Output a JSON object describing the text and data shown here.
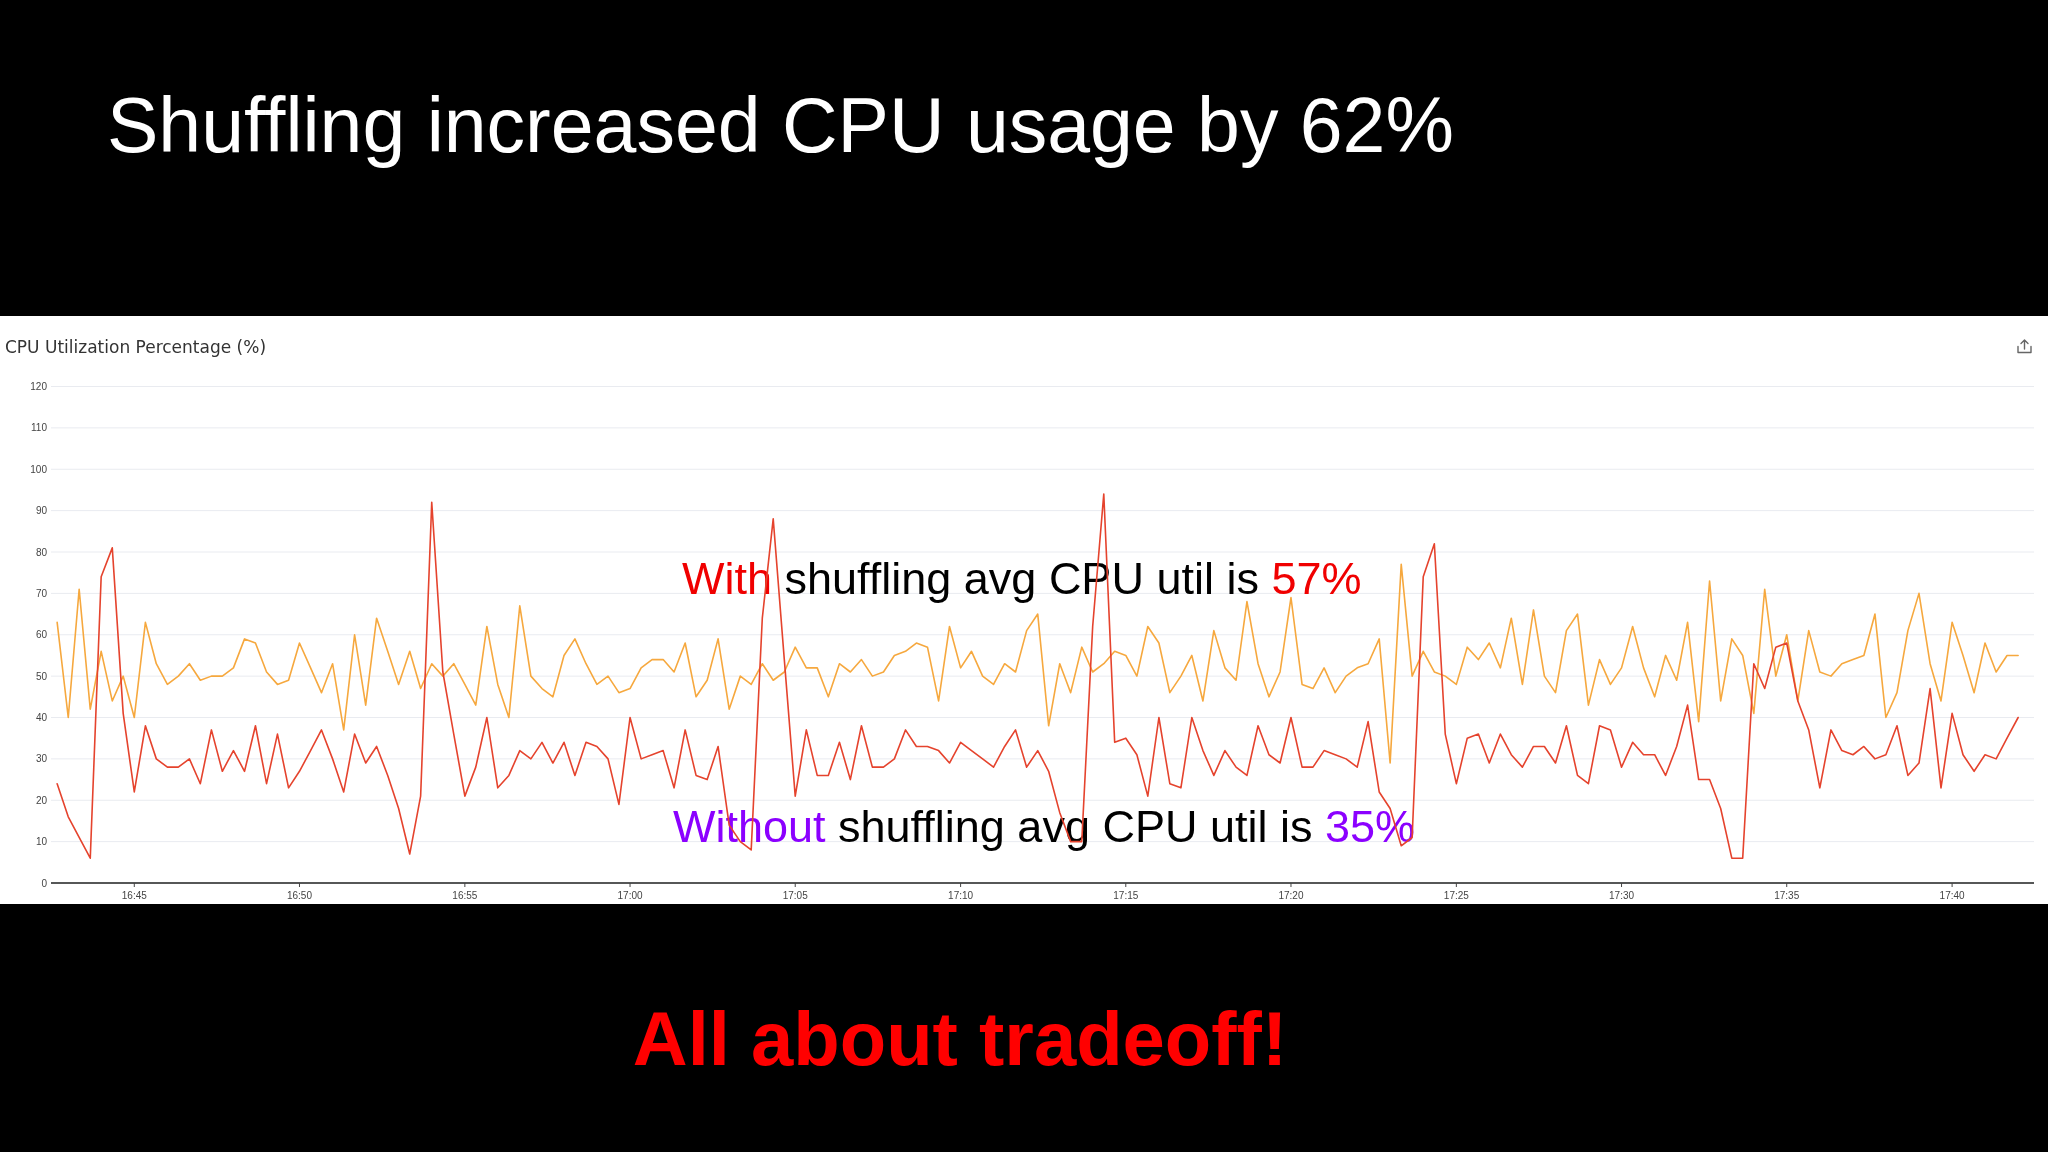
{
  "chart_data": {
    "type": "line",
    "title": "Shuffling increased CPU usage by 62%",
    "subtitle": "CPU Utilization Percentage (%)",
    "annotations": [
      "With shuffling avg CPU util is 57%",
      "Without shuffling avg CPU util is 35%",
      "All about tradeoff!"
    ],
    "xlim": [
      16.708,
      17.708
    ],
    "xticks": [
      {
        "value": 16.75,
        "label": "16:45"
      },
      {
        "value": 16.8333,
        "label": "16:50"
      },
      {
        "value": 16.9167,
        "label": "16:55"
      },
      {
        "value": 17,
        "label": "17:00"
      },
      {
        "value": 17.0833,
        "label": "17:05"
      },
      {
        "value": 17.1667,
        "label": "17:10"
      },
      {
        "value": 17.25,
        "label": "17:15"
      },
      {
        "value": 17.3333,
        "label": "17:20"
      },
      {
        "value": 17.4167,
        "label": "17:25"
      },
      {
        "value": 17.5,
        "label": "17:30"
      },
      {
        "value": 17.5833,
        "label": "17:35"
      },
      {
        "value": 17.6667,
        "label": "17:40"
      }
    ],
    "ylim": [
      0,
      120
    ],
    "yticks": [
      0,
      10,
      20,
      30,
      40,
      50,
      60,
      70,
      80,
      90,
      100,
      110,
      120
    ],
    "grid": "y",
    "x": [
      16.7111,
      16.7167,
      16.7222,
      16.7278,
      16.7333,
      16.7389,
      16.7444,
      16.75,
      16.7556,
      16.7611,
      16.7667,
      16.7722,
      16.7778,
      16.7833,
      16.7889,
      16.7944,
      16.8,
      16.8056,
      16.8111,
      16.8167,
      16.8222,
      16.8278,
      16.8333,
      16.8389,
      16.8444,
      16.85,
      16.8556,
      16.8611,
      16.8667,
      16.8722,
      16.8778,
      16.8833,
      16.8889,
      16.8944,
      16.9,
      16.9056,
      16.9111,
      16.9167,
      16.9222,
      16.9278,
      16.9333,
      16.9389,
      16.9444,
      16.95,
      16.9556,
      16.9611,
      16.9667,
      16.9722,
      16.9778,
      16.9833,
      16.9889,
      16.9944,
      17,
      17.0056,
      17.0111,
      17.0167,
      17.0222,
      17.0278,
      17.0333,
      17.0389,
      17.0444,
      17.05,
      17.0556,
      17.0611,
      17.0667,
      17.0722,
      17.0778,
      17.0833,
      17.0889,
      17.0944,
      17.1,
      17.1056,
      17.1111,
      17.1167,
      17.1222,
      17.1278,
      17.1333,
      17.1389,
      17.1444,
      17.15,
      17.1556,
      17.1611,
      17.1667,
      17.1722,
      17.1778,
      17.1833,
      17.1889,
      17.1944,
      17.2,
      17.2056,
      17.2111,
      17.2167,
      17.2222,
      17.2278,
      17.2333,
      17.2389,
      17.2444,
      17.25,
      17.2556,
      17.2611,
      17.2667,
      17.2722,
      17.2778,
      17.2833,
      17.2889,
      17.2944,
      17.3,
      17.3056,
      17.3111,
      17.3167,
      17.3222,
      17.3278,
      17.3333,
      17.3389,
      17.3444,
      17.35,
      17.3556,
      17.3611,
      17.3667,
      17.3722,
      17.3778,
      17.3833,
      17.3889,
      17.3944,
      17.4,
      17.4056,
      17.4111,
      17.4167,
      17.4222,
      17.4278,
      17.4333,
      17.4389,
      17.4444,
      17.45,
      17.4556,
      17.4611,
      17.4667,
      17.4722,
      17.4778,
      17.4833,
      17.4889,
      17.4944,
      17.5,
      17.5056,
      17.5111,
      17.5167,
      17.5222,
      17.5278,
      17.5333,
      17.5389,
      17.5444,
      17.55,
      17.5556,
      17.5611,
      17.5667,
      17.5722,
      17.5778,
      17.5833,
      17.5889,
      17.5944,
      17.6,
      17.6056,
      17.6111,
      17.6167,
      17.6222,
      17.6278,
      17.6333,
      17.6389,
      17.6444,
      17.65,
      17.6556,
      17.6611,
      17.6667,
      17.6722,
      17.6778,
      17.6833,
      17.6889,
      17.6944,
      17.7
    ],
    "series": [
      {
        "color": "#f6a83e",
        "values": [
          63,
          40,
          71,
          42,
          56,
          44,
          50,
          40,
          63,
          53,
          48,
          50,
          53,
          49,
          50,
          50,
          52,
          59,
          58,
          51,
          48,
          49,
          58,
          52,
          46,
          53,
          37,
          60,
          43,
          64,
          56,
          48,
          56,
          47,
          53,
          50,
          53,
          48,
          43,
          62,
          48,
          40,
          67,
          50,
          47,
          45,
          55,
          59,
          53,
          48,
          50,
          46,
          47,
          52,
          54,
          54,
          51,
          58,
          45,
          49,
          59,
          42,
          50,
          48,
          53,
          49,
          51,
          57,
          52,
          52,
          45,
          53,
          51,
          54,
          50,
          51,
          55,
          56,
          58,
          57,
          44,
          62,
          52,
          56,
          50,
          48,
          53,
          51,
          61,
          65,
          38,
          53,
          46,
          57,
          51,
          53,
          56,
          55,
          50,
          62,
          58,
          46,
          50,
          55,
          44,
          61,
          52,
          49,
          68,
          53,
          45,
          51,
          69,
          48,
          47,
          52,
          46,
          50,
          52,
          53,
          59,
          29,
          77,
          50,
          56,
          51,
          50,
          48,
          57,
          54,
          58,
          52,
          64,
          48,
          66,
          50,
          46,
          61,
          65,
          43,
          54,
          48,
          52,
          62,
          52,
          45,
          55,
          49,
          63,
          39,
          73,
          44,
          59,
          55,
          41,
          71,
          50,
          60,
          44,
          61,
          51,
          50,
          53,
          54,
          55,
          65,
          40,
          46,
          61,
          70,
          53,
          44,
          63,
          55,
          46,
          58,
          51,
          55,
          55
        ]
      },
      {
        "color": "#e5432d",
        "values": [
          24,
          16,
          11,
          6,
          74,
          81,
          41,
          22,
          38,
          30,
          28,
          28,
          30,
          24,
          37,
          27,
          32,
          27,
          38,
          24,
          36,
          23,
          27,
          32,
          37,
          30,
          22,
          36,
          29,
          33,
          26,
          18,
          7,
          21,
          92,
          51,
          36,
          21,
          28,
          40,
          23,
          26,
          32,
          30,
          34,
          29,
          34,
          26,
          34,
          33,
          30,
          19,
          40,
          30,
          31,
          32,
          23,
          37,
          26,
          25,
          33,
          14,
          10,
          8,
          64,
          88,
          54,
          21,
          37,
          26,
          26,
          34,
          25,
          38,
          28,
          28,
          30,
          37,
          33,
          33,
          32,
          29,
          34,
          32,
          30,
          28,
          33,
          37,
          28,
          32,
          27,
          17,
          10,
          10,
          62,
          94,
          34,
          35,
          31,
          21,
          40,
          24,
          23,
          40,
          32,
          26,
          32,
          28,
          26,
          38,
          31,
          29,
          40,
          28,
          28,
          32,
          31,
          30,
          28,
          39,
          22,
          18,
          9,
          11,
          74,
          82,
          36,
          24,
          35,
          36,
          29,
          36,
          31,
          28,
          33,
          33,
          29,
          38,
          26,
          24,
          38,
          37,
          28,
          34,
          31,
          31,
          26,
          33,
          43,
          25,
          25,
          18,
          6,
          6,
          53,
          47,
          57,
          58,
          44,
          37,
          23,
          37,
          32,
          31,
          33,
          30,
          31,
          38,
          26,
          29,
          47,
          23,
          41,
          31,
          27,
          31,
          30,
          35,
          40
        ]
      }
    ]
  }
}
